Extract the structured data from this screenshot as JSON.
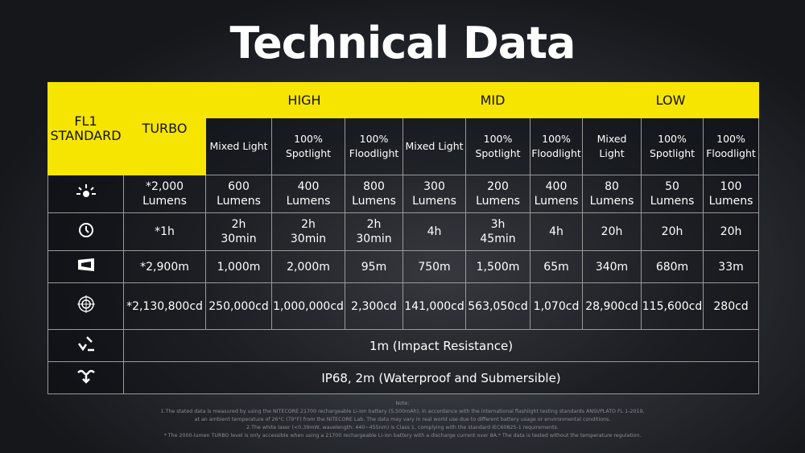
{
  "header": {
    "title": "Technical Data"
  },
  "table": {
    "corner": "FL1\nSTANDARD",
    "turbo": "TURBO",
    "groups": [
      {
        "label": "HIGH",
        "modes": [
          "Mixed Light",
          "100%\nSpotlight",
          "100%\nFloodlight"
        ]
      },
      {
        "label": "MID",
        "modes": [
          "Mixed Light",
          "100%\nSpotlight",
          "100%\nFloodlight"
        ]
      },
      {
        "label": "LOW",
        "modes": [
          "Mixed\nLight",
          "100%\nSpotlight",
          "100%\nFloodlight"
        ]
      }
    ],
    "rows": [
      [
        "*2,000\nLumens",
        "600\nLumens",
        "400\nLumens",
        "800\nLumens",
        "300\nLumens",
        "200\nLumens",
        "400\nLumens",
        "80\nLumens",
        "50\nLumens",
        "100\nLumens"
      ],
      [
        "*1h",
        "2h\n30min",
        "2h\n30min",
        "2h\n30min",
        "4h",
        "3h\n45min",
        "4h",
        "20h",
        "20h",
        "20h"
      ],
      [
        "*2,900m",
        "1,000m",
        "2,000m",
        "95m",
        "750m",
        "1,500m",
        "65m",
        "340m",
        "680m",
        "33m"
      ],
      [
        "*2,130,800cd",
        "250,000cd",
        "1,000,000cd",
        "2,300cd",
        "141,000cd",
        "563,050cd",
        "1,070cd",
        "28,900cd",
        "115,600cd",
        "280cd"
      ]
    ],
    "merged_rows": [
      "1m (Impact Resistance)",
      "IP68, 2m (Waterproof and Submersible)"
    ]
  },
  "notes": [
    "Note:",
    "1.The stated data is measured by using the NITECORE 21700 rechargeable Li-ion battery (5,500mAh), in accordance with the international flashlight testing standards ANSI/PLATO FL 1-2019,",
    "at an ambient temperature of 26°C (79°F) from the NITECORE Lab. The data may vary in real world use due to different battery usage or environmental conditions.",
    "2.The white laser (<0.39mW, wavelength: 440~455nm) is Class 1, complying with the standard IEC60825-1 requirements.",
    "* The 2000-lumen TURBO level is only accessible when using a 21700 rechargeable Li-ion battery with a discharge current over 8A.* The data is tested without the temperature regulation."
  ]
}
